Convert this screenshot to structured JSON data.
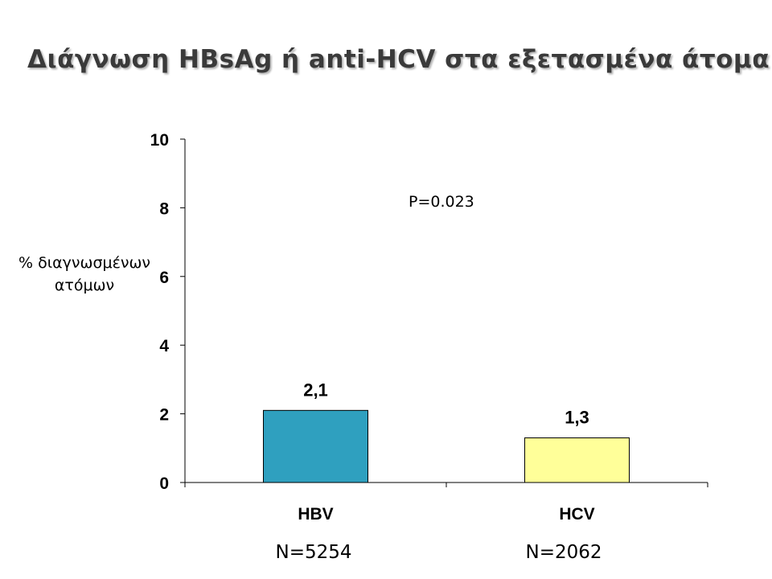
{
  "slide": {
    "title": "Διάγνωση HBsAg ή anti-HCV στα εξετασμένα άτομα"
  },
  "chart_data": {
    "type": "bar",
    "categories": [
      "HBV",
      "HCV"
    ],
    "values": [
      2.1,
      1.3
    ],
    "data_labels": [
      "2,1",
      "1,3"
    ],
    "bar_colors": [
      "#2fa0bf",
      "#ffff99"
    ],
    "sample_sizes": [
      "N=5254",
      "N=2062"
    ],
    "ylabel_lines": [
      "% διαγνωσμένων",
      "ατόμων"
    ],
    "ylim": [
      0,
      10
    ],
    "yticks": [
      0,
      2,
      4,
      6,
      8,
      10
    ],
    "annotation": "P=0.023",
    "grid": false,
    "legend": "none"
  }
}
